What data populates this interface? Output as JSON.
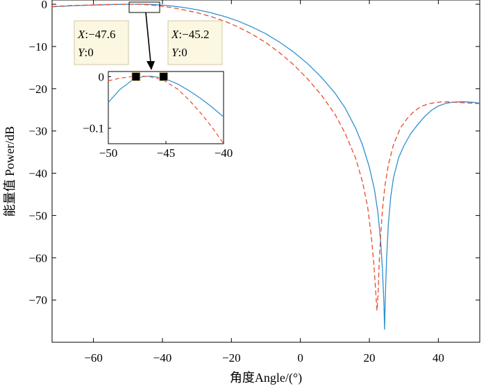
{
  "chart_data": [
    {
      "type": "line",
      "xlabel": "角度Angle/(°)",
      "ylabel": "能量值 Power/dB",
      "xlim": [
        -72,
        52
      ],
      "ylim": [
        -80,
        1
      ],
      "xticks": [
        -60,
        -40,
        -20,
        0,
        20,
        40
      ],
      "yticks": [
        0,
        -10,
        -20,
        -30,
        -40,
        -50,
        -60,
        -70
      ],
      "xtick_labels": [
        "−60",
        "−40",
        "−20",
        "0",
        "20",
        "40"
      ],
      "ytick_labels": [
        "0",
        "−10",
        "−20",
        "−30",
        "−40",
        "−50",
        "−60",
        "−70"
      ],
      "grid": false,
      "series": [
        {
          "style": "solid",
          "color": "#2e8fd0",
          "x": [
            -72,
            -66,
            -60,
            -55,
            -50,
            -47.6,
            -45.2,
            -42,
            -38,
            -34,
            -30,
            -26,
            -22,
            -18,
            -14,
            -10,
            -6,
            -2,
            2,
            6,
            10,
            13,
            16,
            18,
            20,
            21.5,
            22.5,
            23.3,
            23.8,
            24.2,
            24.4,
            24.6,
            25.0,
            25.5,
            26.2,
            27.0,
            28.5,
            30,
            32,
            34,
            36,
            38,
            40,
            42,
            44,
            46,
            48,
            50,
            52
          ],
          "y": [
            -0.6,
            -0.35,
            -0.2,
            -0.08,
            -0.01,
            0,
            0,
            -0.1,
            -0.35,
            -0.75,
            -1.3,
            -2.0,
            -2.9,
            -4.0,
            -5.4,
            -7.0,
            -9.0,
            -11.3,
            -14.0,
            -17.2,
            -21.0,
            -24.6,
            -29.3,
            -33.3,
            -38.6,
            -44.0,
            -49.5,
            -56.5,
            -63.0,
            -70.5,
            -77.0,
            -70.0,
            -60.0,
            -52.0,
            -45.5,
            -41.0,
            -36.3,
            -33.5,
            -30.6,
            -28.5,
            -26.6,
            -25.1,
            -24.1,
            -23.5,
            -23.2,
            -23.1,
            -23.1,
            -23.2,
            -23.4
          ]
        },
        {
          "style": "dashed",
          "color": "#e8492a",
          "x": [
            -72,
            -66,
            -60,
            -55,
            -50,
            -47.6,
            -45.2,
            -42,
            -38,
            -34,
            -30,
            -26,
            -22,
            -18,
            -14,
            -10,
            -6,
            -2,
            2,
            6,
            10,
            13,
            16,
            18,
            19.5,
            20.5,
            21.3,
            21.8,
            22.2,
            22.5,
            22.8,
            23.2,
            23.8,
            24.5,
            25.5,
            27,
            29,
            31,
            33,
            35,
            37,
            39,
            41,
            43,
            45,
            47,
            49,
            51,
            52
          ],
          "y": [
            -0.55,
            -0.3,
            -0.15,
            -0.05,
            0,
            0,
            -0.08,
            -0.3,
            -0.7,
            -1.3,
            -2.0,
            -2.9,
            -4.0,
            -5.4,
            -7.1,
            -9.1,
            -11.5,
            -14.3,
            -17.6,
            -21.4,
            -26.0,
            -30.6,
            -36.4,
            -42.0,
            -48.0,
            -54.5,
            -61.5,
            -67.5,
            -72.5,
            -69.0,
            -62.0,
            -55.5,
            -48.5,
            -43.0,
            -38.0,
            -33.2,
            -29.3,
            -27.0,
            -25.3,
            -24.2,
            -23.6,
            -23.3,
            -23.1,
            -23.1,
            -23.2,
            -23.3,
            -23.4,
            -23.5,
            -23.5
          ]
        }
      ]
    },
    {
      "type": "line",
      "inset": true,
      "xlim": [
        -50,
        -40
      ],
      "ylim": [
        -0.13,
        0.01
      ],
      "xticks": [
        -50,
        -45,
        -40
      ],
      "yticks": [
        0,
        -0.1
      ],
      "xtick_labels": [
        "−50",
        "−45",
        "−40"
      ],
      "ytick_labels": [
        "0",
        "−0.1"
      ],
      "series": [
        {
          "style": "solid",
          "color": "#2e8fd0",
          "x": [
            -50,
            -49,
            -48,
            -47.6,
            -47,
            -46.4,
            -46,
            -45.2,
            -44,
            -43,
            -42,
            -41,
            -40
          ],
          "y": [
            -0.05,
            -0.025,
            -0.008,
            -0.004,
            0,
            0.001,
            0,
            -0.003,
            -0.014,
            -0.027,
            -0.042,
            -0.059,
            -0.078
          ]
        },
        {
          "style": "dashed",
          "color": "#e8492a",
          "x": [
            -50,
            -49,
            -48,
            -47.6,
            -47,
            -46.4,
            -45.6,
            -45.2,
            -44,
            -43,
            -42,
            -41,
            -40
          ],
          "y": [
            -0.008,
            -0.003,
            0,
            0.001,
            0.001,
            0,
            -0.004,
            -0.007,
            -0.024,
            -0.045,
            -0.07,
            -0.098,
            -0.13
          ]
        }
      ],
      "datatips": [
        {
          "x_label": "X",
          "x_value": ":−47.6",
          "y_label": "Y",
          "y_value": ":0",
          "x": -47.6,
          "y": 0
        },
        {
          "x_label": "X",
          "x_value": ":−45.2",
          "y_label": "Y",
          "y_value": ":0",
          "x": -45.2,
          "y": 0
        }
      ]
    }
  ]
}
